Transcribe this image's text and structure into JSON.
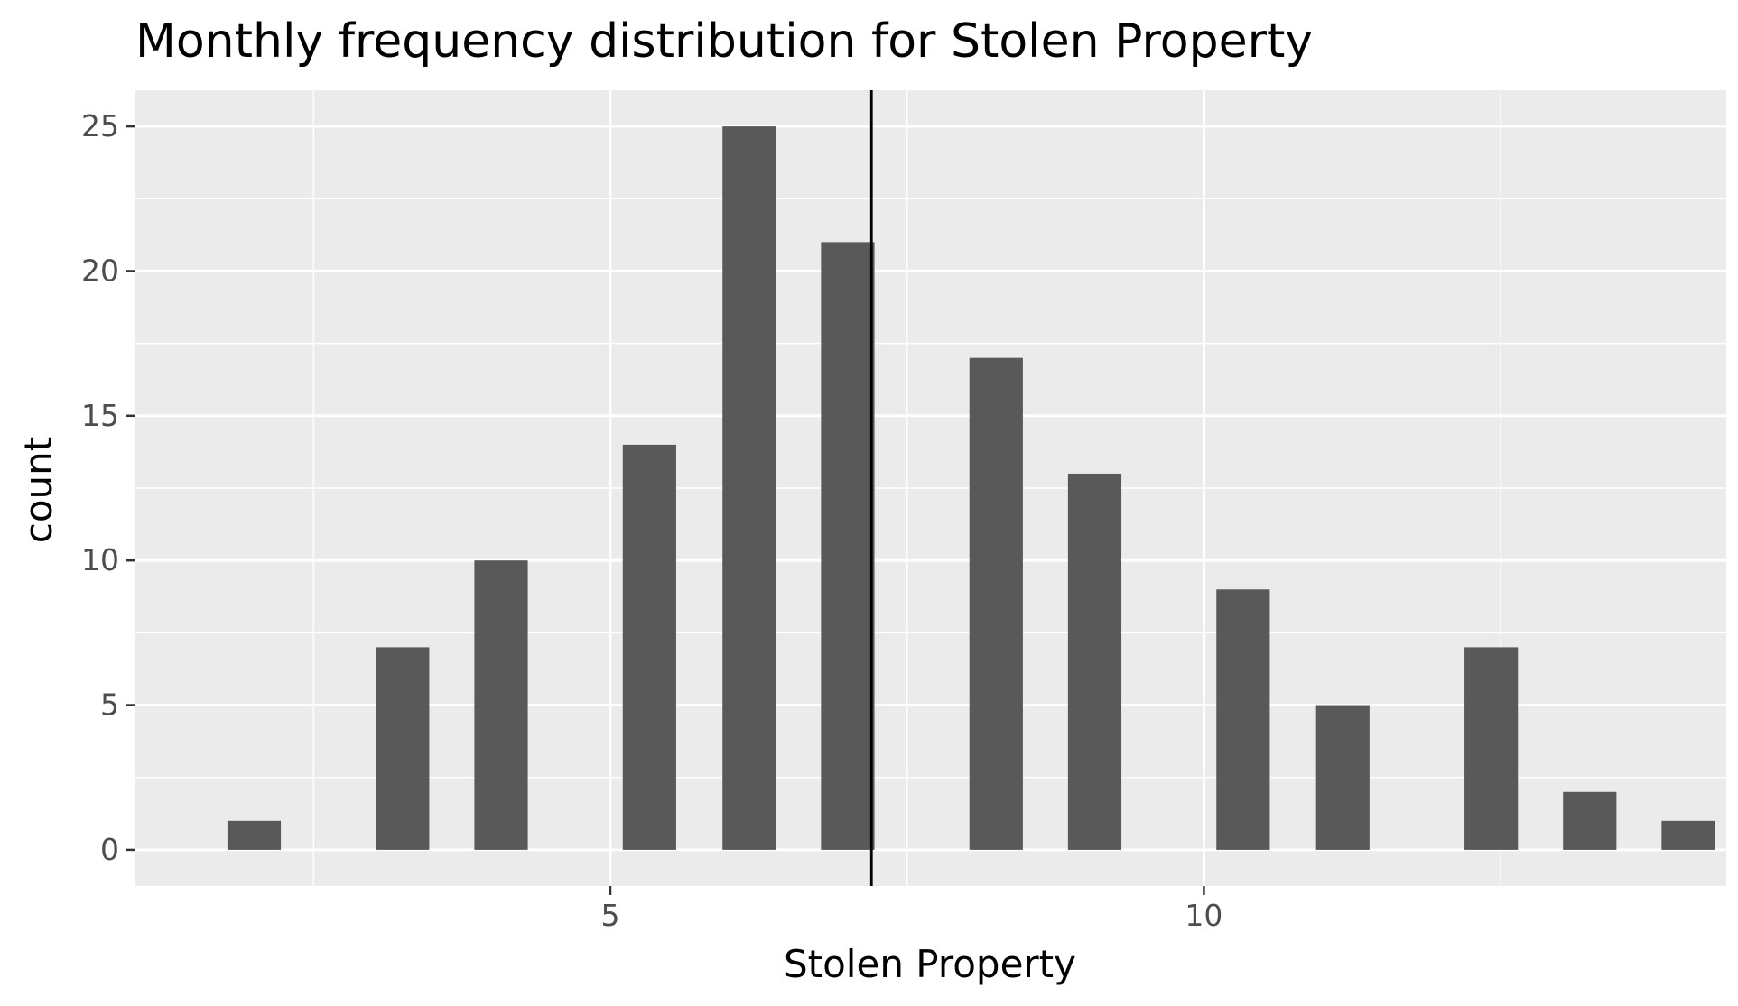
{
  "chart_data": {
    "type": "bar",
    "title": "Monthly frequency distribution for Stolen Property",
    "xlabel": "Stolen Property",
    "ylabel": "count",
    "x": [
      1,
      2,
      3,
      4,
      5,
      6,
      7,
      8,
      9,
      10,
      11,
      12,
      13
    ],
    "bin_width": 0.45,
    "values": [
      1,
      7,
      10,
      14,
      25,
      21,
      17,
      13,
      9,
      5,
      7,
      2,
      1
    ],
    "bars": [
      {
        "x": 2.0,
        "count": 1
      },
      {
        "x": 3.25,
        "count": 7
      },
      {
        "x": 4.08,
        "count": 10
      },
      {
        "x": 5.33,
        "count": 14
      },
      {
        "x": 6.17,
        "count": 25
      },
      {
        "x": 7.0,
        "count": 21
      },
      {
        "x": 8.25,
        "count": 17
      },
      {
        "x": 9.08,
        "count": 13
      },
      {
        "x": 10.33,
        "count": 9
      },
      {
        "x": 11.17,
        "count": 5
      },
      {
        "x": 12.42,
        "count": 7
      },
      {
        "x": 13.25,
        "count": 2
      },
      {
        "x": 14.08,
        "count": 1
      }
    ],
    "vline_x": 7.2,
    "xlim": [
      1.0,
      14.4
    ],
    "ylim": [
      -1.25,
      26.25
    ],
    "x_ticks": [
      5,
      10
    ],
    "x_minor_ticks": [
      2.5,
      7.5,
      12.5
    ],
    "y_ticks": [
      0,
      5,
      10,
      15,
      20,
      25
    ],
    "y_minor_ticks": [
      2.5,
      7.5,
      12.5,
      17.5,
      22.5
    ],
    "grid": true,
    "colors": {
      "panel_background": "#ebebeb",
      "grid_line": "#ffffff",
      "bar_fill": "#595959",
      "vline": "#000000",
      "tick_label": "#4d4d4d",
      "text": "#000000"
    }
  }
}
